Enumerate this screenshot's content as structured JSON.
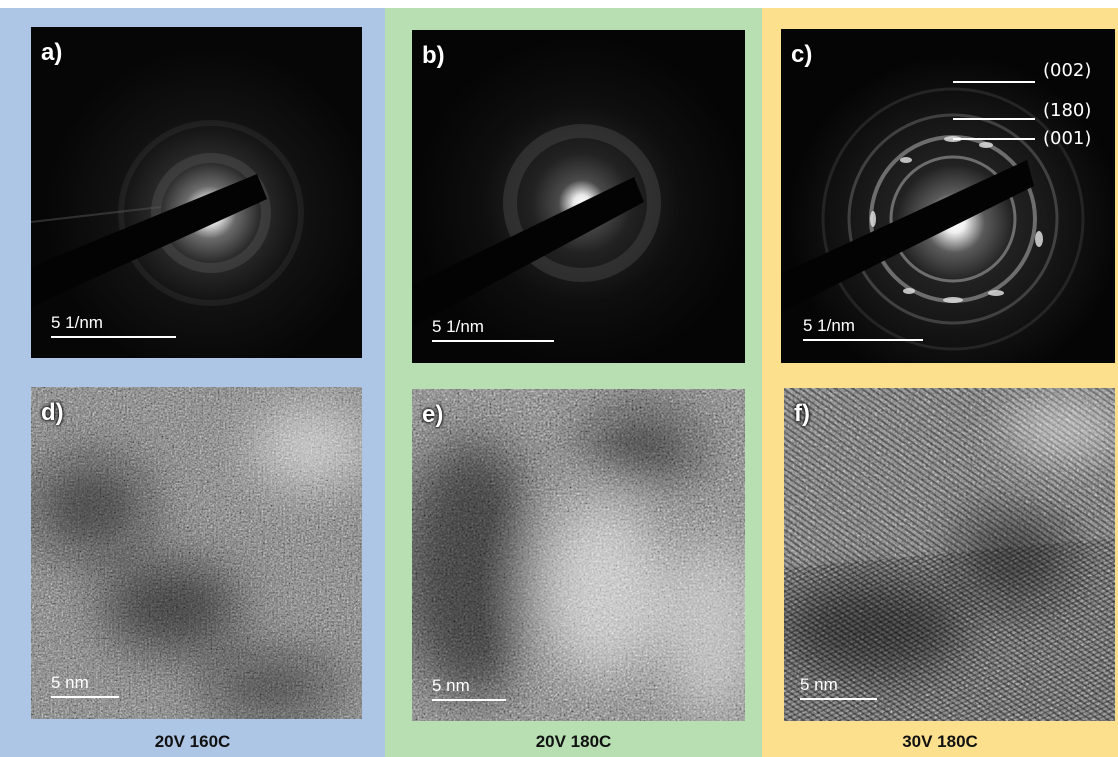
{
  "panels": {
    "a": {
      "label": "a)",
      "scale": "5 1/nm"
    },
    "b": {
      "label": "b)",
      "scale": "5 1/nm"
    },
    "c": {
      "label": "c)",
      "scale": "5 1/nm",
      "indices": [
        "(002)",
        "(180)",
        "(001)"
      ]
    },
    "d": {
      "label": "d)",
      "scale": "5 nm"
    },
    "e": {
      "label": "e)",
      "scale": "5 nm"
    },
    "f": {
      "label": "f)",
      "scale": "5 nm"
    }
  },
  "captions": {
    "col1": "20V 160C",
    "col2": "20V 180C",
    "col3": "30V 180C"
  },
  "colors": {
    "col1_background": "#aec6e6",
    "col2_background": "#b7dfb2",
    "col3_background": "#fde08d"
  }
}
